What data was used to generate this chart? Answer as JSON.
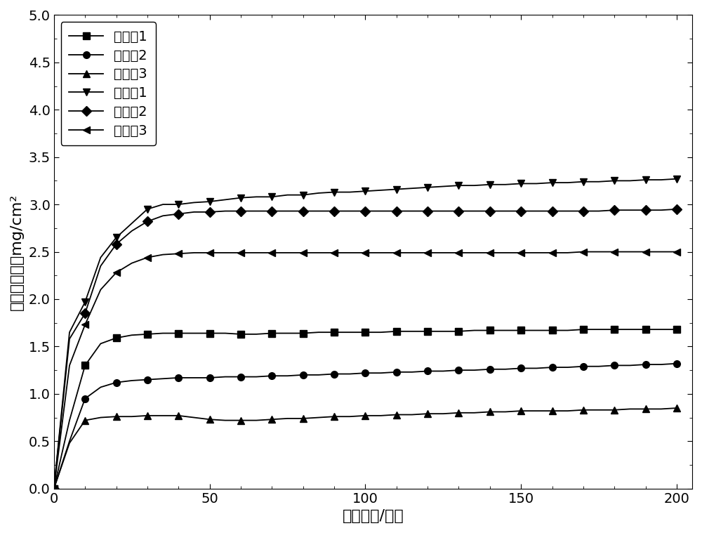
{
  "title": "",
  "xlabel": "腐蚀时间/小时",
  "ylabel": "单位面积增重mg/cm²",
  "xlim": [
    0,
    205
  ],
  "ylim": [
    0.0,
    5.0
  ],
  "xticks": [
    0,
    50,
    100,
    150,
    200
  ],
  "yticks": [
    0.0,
    0.5,
    1.0,
    1.5,
    2.0,
    2.5,
    3.0,
    3.5,
    4.0,
    4.5,
    5.0
  ],
  "series": [
    {
      "label": "实施例1",
      "marker": "s",
      "color": "#000000",
      "x": [
        0,
        5,
        10,
        15,
        20,
        25,
        30,
        35,
        40,
        45,
        50,
        55,
        60,
        65,
        70,
        75,
        80,
        85,
        90,
        95,
        100,
        105,
        110,
        115,
        120,
        125,
        130,
        135,
        140,
        145,
        150,
        155,
        160,
        165,
        170,
        175,
        180,
        185,
        190,
        195,
        200
      ],
      "y": [
        0.0,
        0.72,
        1.3,
        1.53,
        1.59,
        1.62,
        1.63,
        1.64,
        1.64,
        1.64,
        1.64,
        1.64,
        1.63,
        1.63,
        1.64,
        1.64,
        1.64,
        1.65,
        1.65,
        1.65,
        1.65,
        1.65,
        1.66,
        1.66,
        1.66,
        1.66,
        1.66,
        1.67,
        1.67,
        1.67,
        1.67,
        1.67,
        1.67,
        1.67,
        1.68,
        1.68,
        1.68,
        1.68,
        1.68,
        1.68,
        1.68
      ]
    },
    {
      "label": "实施例2",
      "marker": "o",
      "color": "#000000",
      "x": [
        0,
        5,
        10,
        15,
        20,
        25,
        30,
        35,
        40,
        45,
        50,
        55,
        60,
        65,
        70,
        75,
        80,
        85,
        90,
        95,
        100,
        105,
        110,
        115,
        120,
        125,
        130,
        135,
        140,
        145,
        150,
        155,
        160,
        165,
        170,
        175,
        180,
        185,
        190,
        195,
        200
      ],
      "y": [
        0.0,
        0.5,
        0.95,
        1.07,
        1.12,
        1.14,
        1.15,
        1.16,
        1.17,
        1.17,
        1.17,
        1.18,
        1.18,
        1.18,
        1.19,
        1.19,
        1.2,
        1.2,
        1.21,
        1.21,
        1.22,
        1.22,
        1.23,
        1.23,
        1.24,
        1.24,
        1.25,
        1.25,
        1.26,
        1.26,
        1.27,
        1.27,
        1.28,
        1.28,
        1.29,
        1.29,
        1.3,
        1.3,
        1.31,
        1.31,
        1.32
      ]
    },
    {
      "label": "实施例3",
      "marker": "^",
      "color": "#000000",
      "x": [
        0,
        5,
        10,
        15,
        20,
        25,
        30,
        35,
        40,
        45,
        50,
        55,
        60,
        65,
        70,
        75,
        80,
        85,
        90,
        95,
        100,
        105,
        110,
        115,
        120,
        125,
        130,
        135,
        140,
        145,
        150,
        155,
        160,
        165,
        170,
        175,
        180,
        185,
        190,
        195,
        200
      ],
      "y": [
        0.0,
        0.48,
        0.72,
        0.75,
        0.76,
        0.76,
        0.77,
        0.77,
        0.77,
        0.75,
        0.73,
        0.72,
        0.72,
        0.72,
        0.73,
        0.74,
        0.74,
        0.75,
        0.76,
        0.76,
        0.77,
        0.77,
        0.78,
        0.78,
        0.79,
        0.79,
        0.8,
        0.8,
        0.81,
        0.81,
        0.82,
        0.82,
        0.82,
        0.82,
        0.83,
        0.83,
        0.83,
        0.84,
        0.84,
        0.84,
        0.85
      ]
    },
    {
      "label": "对比例1",
      "marker": "v",
      "color": "#000000",
      "x": [
        0,
        5,
        10,
        15,
        20,
        25,
        30,
        35,
        40,
        45,
        50,
        55,
        60,
        65,
        70,
        75,
        80,
        85,
        90,
        95,
        100,
        105,
        110,
        115,
        120,
        125,
        130,
        135,
        140,
        145,
        150,
        155,
        160,
        165,
        170,
        175,
        180,
        185,
        190,
        195,
        200
      ],
      "y": [
        0.0,
        1.65,
        1.97,
        2.44,
        2.65,
        2.8,
        2.95,
        3.0,
        3.0,
        3.02,
        3.03,
        3.05,
        3.07,
        3.08,
        3.08,
        3.1,
        3.1,
        3.12,
        3.13,
        3.13,
        3.14,
        3.15,
        3.16,
        3.17,
        3.18,
        3.19,
        3.2,
        3.2,
        3.21,
        3.21,
        3.22,
        3.22,
        3.23,
        3.23,
        3.24,
        3.24,
        3.25,
        3.25,
        3.26,
        3.26,
        3.27
      ]
    },
    {
      "label": "对比例2",
      "marker": "D",
      "color": "#000000",
      "x": [
        0,
        5,
        10,
        15,
        20,
        25,
        30,
        35,
        40,
        45,
        50,
        55,
        60,
        65,
        70,
        75,
        80,
        85,
        90,
        95,
        100,
        105,
        110,
        115,
        120,
        125,
        130,
        135,
        140,
        145,
        150,
        155,
        160,
        165,
        170,
        175,
        180,
        185,
        190,
        195,
        200
      ],
      "y": [
        0.0,
        1.58,
        1.85,
        2.35,
        2.58,
        2.72,
        2.82,
        2.88,
        2.9,
        2.92,
        2.92,
        2.93,
        2.93,
        2.93,
        2.93,
        2.93,
        2.93,
        2.93,
        2.93,
        2.93,
        2.93,
        2.93,
        2.93,
        2.93,
        2.93,
        2.93,
        2.93,
        2.93,
        2.93,
        2.93,
        2.93,
        2.93,
        2.93,
        2.93,
        2.93,
        2.93,
        2.94,
        2.94,
        2.94,
        2.94,
        2.95
      ]
    },
    {
      "label": "对比例3",
      "marker": "<",
      "color": "#000000",
      "x": [
        0,
        5,
        10,
        15,
        20,
        25,
        30,
        35,
        40,
        45,
        50,
        55,
        60,
        65,
        70,
        75,
        80,
        85,
        90,
        95,
        100,
        105,
        110,
        115,
        120,
        125,
        130,
        135,
        140,
        145,
        150,
        155,
        160,
        165,
        170,
        175,
        180,
        185,
        190,
        195,
        200
      ],
      "y": [
        0.0,
        1.3,
        1.73,
        2.1,
        2.28,
        2.38,
        2.44,
        2.47,
        2.48,
        2.49,
        2.49,
        2.49,
        2.49,
        2.49,
        2.49,
        2.49,
        2.49,
        2.49,
        2.49,
        2.49,
        2.49,
        2.49,
        2.49,
        2.49,
        2.49,
        2.49,
        2.49,
        2.49,
        2.49,
        2.49,
        2.49,
        2.49,
        2.49,
        2.49,
        2.5,
        2.5,
        2.5,
        2.5,
        2.5,
        2.5,
        2.5
      ]
    }
  ],
  "marker_every": 2,
  "linewidth": 1.3,
  "markersize": 7,
  "legend_fontsize": 14,
  "axis_fontsize": 16,
  "tick_fontsize": 14,
  "background_color": "#ffffff"
}
